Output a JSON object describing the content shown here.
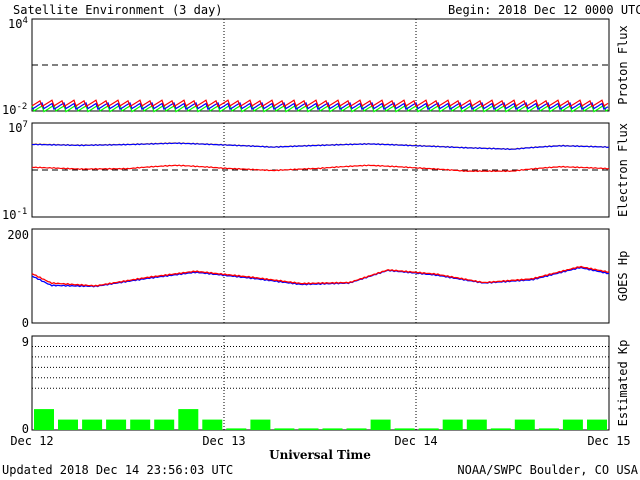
{
  "header": {
    "title": "Satellite Environment (3 day)",
    "begin_label": "Begin:",
    "begin_value": "2018 Dec 12 0000 UTC"
  },
  "footer": {
    "updated": "Updated 2018 Dec 14 23:56:03 UTC",
    "credit": "NOAA/SWPC Boulder, CO USA"
  },
  "xaxis": {
    "label": "Universal Time",
    "ticks": [
      "Dec 12",
      "Dec 13",
      "Dec 14",
      "Dec 15"
    ],
    "range_days": [
      0,
      3
    ]
  },
  "colors": {
    "red": "#ff0000",
    "blue": "#0000ff",
    "green": "#00ff00",
    "orange": "#ffa500",
    "kp_bar": "#00ff00"
  },
  "chart_data": [
    {
      "type": "line",
      "panel": "proton",
      "ylabel": "Proton Flux",
      "yscale": "log",
      "ylim": [
        0.01,
        10000
      ],
      "ytick_labels": {
        "top": "10",
        "top_exp": "4",
        "bottom": "10",
        "bottom_exp": "-2"
      },
      "threshold": 10,
      "series": [
        {
          "color": "red",
          "level": 0.03
        },
        {
          "color": "blue",
          "level": 0.02
        },
        {
          "color": "green",
          "level": 0.014
        }
      ]
    },
    {
      "type": "line",
      "panel": "electron",
      "ylabel": "Electron Flux",
      "yscale": "log",
      "ylim": [
        0.1,
        10000000
      ],
      "ytick_labels": {
        "top": "10",
        "top_exp": "7",
        "bottom": "10",
        "bottom_exp": "-1"
      },
      "threshold": 1000,
      "series": [
        {
          "color": "red",
          "x": [
            0,
            0.25,
            0.5,
            0.75,
            1.0,
            1.25,
            1.5,
            1.75,
            2.0,
            2.25,
            2.5,
            2.75,
            3.0
          ],
          "values": [
            1700,
            1200,
            1300,
            2500,
            1400,
            900,
            1400,
            2500,
            1500,
            800,
            800,
            1900,
            1300
          ]
        },
        {
          "color": "orange",
          "x": [
            0,
            0.25,
            0.5,
            0.75,
            1.0,
            1.25,
            1.5,
            1.75,
            2.0,
            2.25,
            2.5,
            2.75,
            3.0
          ],
          "values": [
            160000,
            130000,
            150000,
            200000,
            140000,
            90000,
            130000,
            170000,
            120000,
            80000,
            60000,
            120000,
            90000
          ]
        },
        {
          "color": "blue",
          "x": [
            0,
            0.25,
            0.5,
            0.75,
            1.0,
            1.25,
            1.5,
            1.75,
            2.0,
            2.25,
            2.5,
            2.75,
            3.0
          ],
          "values": [
            150000,
            125000,
            145000,
            190000,
            135000,
            88000,
            125000,
            165000,
            115000,
            78000,
            58000,
            115000,
            88000
          ]
        }
      ]
    },
    {
      "type": "line",
      "panel": "hp",
      "ylabel": "GOES Hp",
      "ylim": [
        0,
        200
      ],
      "ytick_labels": {
        "top": "200",
        "bottom": "0"
      },
      "series": [
        {
          "color": "blue",
          "x": [
            0,
            0.1,
            0.33,
            0.6,
            0.85,
            1.15,
            1.4,
            1.65,
            1.85,
            2.1,
            2.35,
            2.6,
            2.85,
            3.0
          ],
          "values": [
            100,
            80,
            78,
            95,
            108,
            95,
            82,
            85,
            112,
            102,
            85,
            92,
            118,
            105
          ]
        },
        {
          "color": "red",
          "x": [
            0,
            0.1,
            0.33,
            0.6,
            0.85,
            1.15,
            1.4,
            1.65,
            1.85,
            2.1,
            2.35,
            2.6,
            2.85,
            3.0
          ],
          "values": [
            105,
            85,
            79,
            97,
            110,
            97,
            84,
            86,
            113,
            104,
            86,
            94,
            120,
            108
          ]
        }
      ]
    },
    {
      "type": "bar",
      "panel": "kp",
      "ylabel": "Estimated Kp",
      "ylim": [
        0,
        9
      ],
      "ytick_labels": {
        "top": "9",
        "bottom": "0"
      },
      "gridlines": [
        4,
        5,
        6,
        7,
        8
      ],
      "values": [
        2,
        1,
        1,
        1,
        1,
        1,
        2,
        1,
        0,
        1,
        0,
        0,
        0,
        0,
        1,
        0,
        0,
        1,
        1,
        0,
        1,
        0,
        1,
        1
      ]
    }
  ]
}
